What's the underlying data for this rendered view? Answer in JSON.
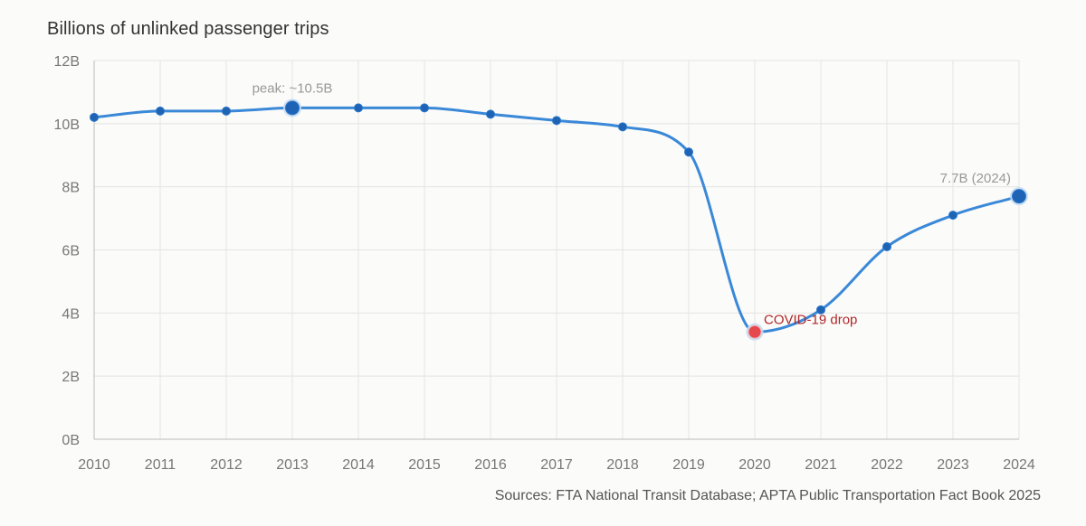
{
  "chart_data": {
    "type": "line",
    "title": "Billions of unlinked passenger trips",
    "x": [
      "2010",
      "2011",
      "2012",
      "2013",
      "2014",
      "2015",
      "2016",
      "2017",
      "2018",
      "2019",
      "2020",
      "2021",
      "2022",
      "2023",
      "2024"
    ],
    "values": [
      10.2,
      10.4,
      10.4,
      10.5,
      10.5,
      10.5,
      10.3,
      10.1,
      9.9,
      9.1,
      3.4,
      4.1,
      6.1,
      7.1,
      7.7
    ],
    "ylim": [
      0,
      12
    ],
    "yticks": [
      0,
      2,
      4,
      6,
      8,
      10,
      12
    ],
    "ytick_labels": [
      "0B",
      "2B",
      "4B",
      "6B",
      "8B",
      "10B",
      "12B"
    ],
    "grid": true,
    "annotations": [
      {
        "x": "2013",
        "text": "peak: ~10.5B",
        "color": "#999999"
      },
      {
        "x": "2020",
        "text": "COVID-19 drop",
        "color": "#b0282a"
      },
      {
        "x": "2024",
        "text": "7.7B (2024)",
        "color": "#999999"
      }
    ],
    "highlight_color": "#e5484d",
    "line_color": "#3a88d8",
    "point_color": "#1f63b5"
  },
  "source": "Sources: FTA National Transit Database; APTA Public Transportation Fact Book 2025"
}
